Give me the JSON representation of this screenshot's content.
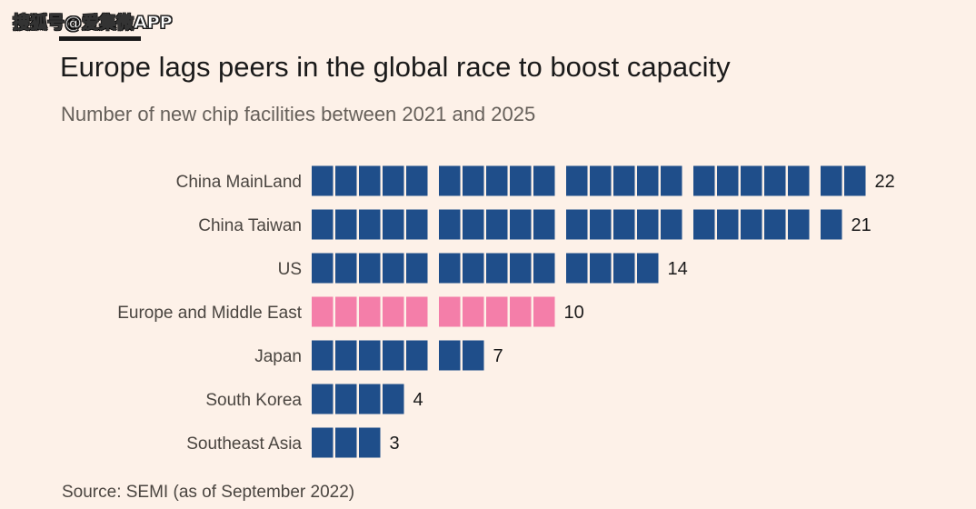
{
  "watermark": "搜狐号@爱集微APP",
  "source": "Source: SEMI (as of September 2022)",
  "colors": {
    "default_bar": "#1f4e8a",
    "highlight_bar": "#f47ea9",
    "label_text": "#4a4540",
    "value_text": "#1a1a1a"
  },
  "chart_data": {
    "type": "bar",
    "orientation": "horizontal",
    "style": "unit-squares-grouped-by-5",
    "title": "Europe lags peers in the global race to boost capacity",
    "subtitle": "Number of new chip facilities between 2021 and 2025",
    "categories": [
      "China MainLand",
      "China Taiwan",
      "US",
      "Europe and Middle East",
      "Japan",
      "South Korea",
      "Southeast Asia"
    ],
    "values": [
      22,
      21,
      14,
      10,
      7,
      4,
      3
    ],
    "highlight": "Europe and Middle East",
    "xlabel": "",
    "ylabel": ""
  }
}
